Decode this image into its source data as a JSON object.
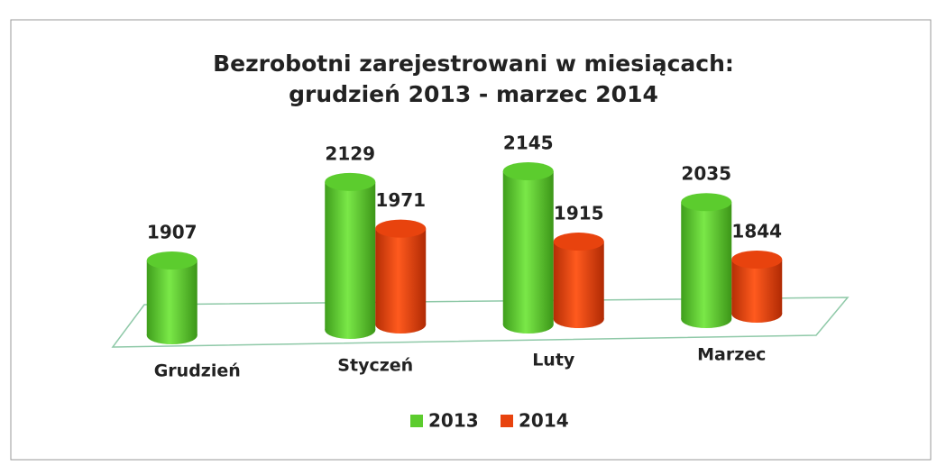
{
  "chart_data": {
    "type": "bar3d",
    "title_lines": [
      "Bezrobotni zarejestrowani w miesiącach:",
      "grudzień 2013 - marzec 2014"
    ],
    "categories": [
      "Grudzień",
      "Styczeń",
      "Luty",
      "Marzec"
    ],
    "series": [
      {
        "name": "2013",
        "color": "#5ccc2e",
        "values": [
          1907,
          2129,
          2145,
          2035
        ]
      },
      {
        "name": "2014",
        "color": "#e8430e",
        "values": [
          null,
          1971,
          1915,
          1844
        ]
      }
    ],
    "legend": "bottom"
  }
}
